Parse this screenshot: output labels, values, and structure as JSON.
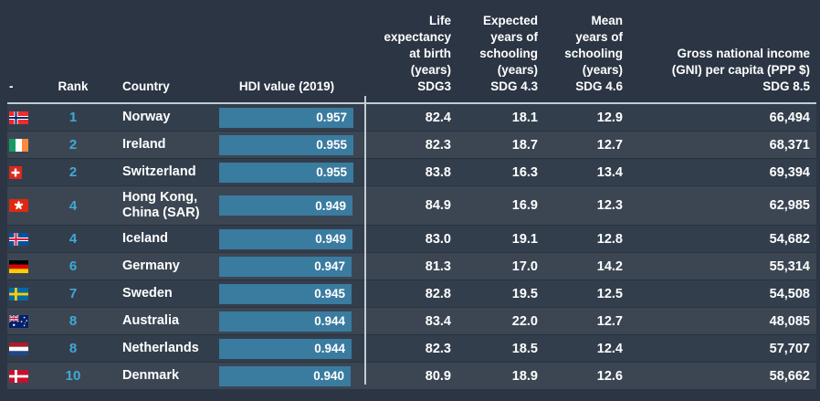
{
  "colors": {
    "page_bg": "#2b3544",
    "row_odd": "#333e4d",
    "row_even": "#3c4653",
    "bar": "#3a7ba0",
    "rank_accent": "#41a9d4",
    "line": "#c3ccd2"
  },
  "table": {
    "columns": {
      "flag": "-",
      "rank": "Rank",
      "country": "Country",
      "hdi": "HDI value (2019)",
      "life": "Life\nexpectancy\nat birth\n(years)\nSDG3",
      "expected": "Expected\nyears of\nschooling\n(years)\nSDG 4.3",
      "mean": "Mean\nyears of\nschooling\n(years)\nSDG 4.6",
      "gni": "Gross national income\n(GNI) per capita (PPP $)\nSDG 8.5"
    },
    "rows": [
      {
        "flag": "norway",
        "rank": "1",
        "country": "Norway",
        "hdi": "0.957",
        "hdi_value": 0.957,
        "life": "82.4",
        "expected": "18.1",
        "mean": "12.9",
        "gni": "66,494"
      },
      {
        "flag": "ireland",
        "rank": "2",
        "country": "Ireland",
        "hdi": "0.955",
        "hdi_value": 0.955,
        "life": "82.3",
        "expected": "18.7",
        "mean": "12.7",
        "gni": "68,371"
      },
      {
        "flag": "switzerland",
        "rank": "2",
        "country": "Switzerland",
        "hdi": "0.955",
        "hdi_value": 0.955,
        "life": "83.8",
        "expected": "16.3",
        "mean": "13.4",
        "gni": "69,394"
      },
      {
        "flag": "hongkong",
        "rank": "4",
        "country": "Hong Kong,\nChina (SAR)",
        "hdi": "0.949",
        "hdi_value": 0.949,
        "life": "84.9",
        "expected": "16.9",
        "mean": "12.3",
        "gni": "62,985"
      },
      {
        "flag": "iceland",
        "rank": "4",
        "country": "Iceland",
        "hdi": "0.949",
        "hdi_value": 0.949,
        "life": "83.0",
        "expected": "19.1",
        "mean": "12.8",
        "gni": "54,682"
      },
      {
        "flag": "germany",
        "rank": "6",
        "country": "Germany",
        "hdi": "0.947",
        "hdi_value": 0.947,
        "life": "81.3",
        "expected": "17.0",
        "mean": "14.2",
        "gni": "55,314"
      },
      {
        "flag": "sweden",
        "rank": "7",
        "country": "Sweden",
        "hdi": "0.945",
        "hdi_value": 0.945,
        "life": "82.8",
        "expected": "19.5",
        "mean": "12.5",
        "gni": "54,508"
      },
      {
        "flag": "australia",
        "rank": "8",
        "country": "Australia",
        "hdi": "0.944",
        "hdi_value": 0.944,
        "life": "83.4",
        "expected": "22.0",
        "mean": "12.7",
        "gni": "48,085"
      },
      {
        "flag": "netherlands",
        "rank": "8",
        "country": "Netherlands",
        "hdi": "0.944",
        "hdi_value": 0.944,
        "life": "82.3",
        "expected": "18.5",
        "mean": "12.4",
        "gni": "57,707"
      },
      {
        "flag": "denmark",
        "rank": "10",
        "country": "Denmark",
        "hdi": "0.940",
        "hdi_value": 0.94,
        "life": "80.9",
        "expected": "18.9",
        "mean": "12.6",
        "gni": "58,662"
      }
    ]
  }
}
